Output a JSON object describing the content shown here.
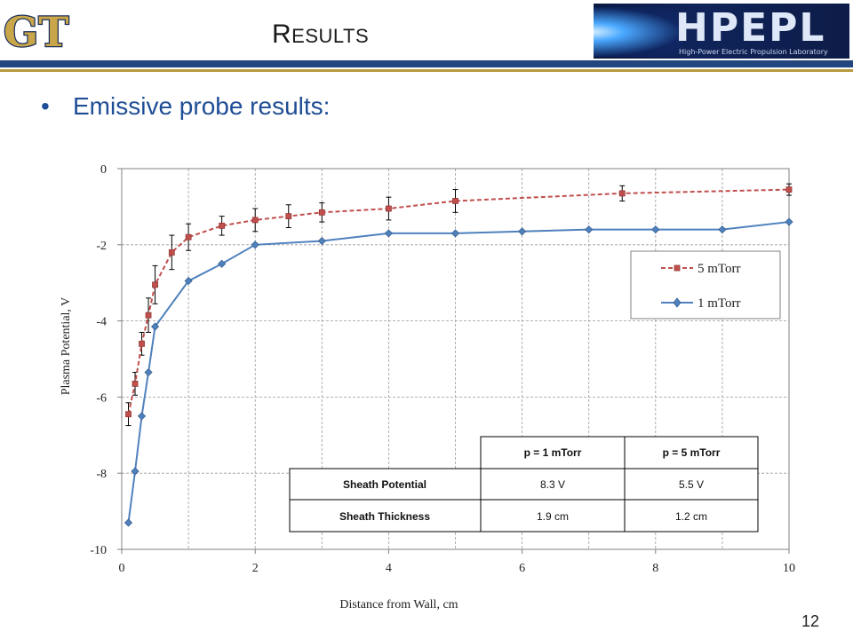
{
  "header": {
    "title_initial": "R",
    "title_rest": "esults",
    "left_logo": "GT",
    "right_logo": {
      "name": "HPEPL",
      "subtitle": "High-Power Electric Propulsion Laboratory"
    }
  },
  "bullet": "Emissive probe results:",
  "page_number": "12",
  "colors": {
    "series_5mTorr": "#c0504d",
    "series_1mTorr": "#4f81bd",
    "header_rule": "#23467f",
    "accent_rule": "#b89a3f",
    "bullet_text": "#1f4e96"
  },
  "chart_data": {
    "type": "line",
    "xlabel": "Distance from Wall, cm",
    "ylabel": "Plasma Potential, V",
    "xlim": [
      0,
      10
    ],
    "ylim": [
      -10,
      0
    ],
    "xticks": [
      0,
      2,
      4,
      6,
      8,
      10
    ],
    "yticks": [
      0,
      -2,
      -4,
      -6,
      -8,
      -10
    ],
    "grid": true,
    "legend_position": "right",
    "series": [
      {
        "name": "5 mTorr",
        "style": "dashed",
        "marker": "square",
        "color": "#c0504d",
        "x": [
          0.1,
          0.2,
          0.3,
          0.4,
          0.5,
          0.75,
          1.0,
          1.5,
          2.0,
          2.5,
          3.0,
          4.0,
          5.0,
          7.5,
          10.0
        ],
        "y": [
          -6.45,
          -5.65,
          -4.6,
          -3.85,
          -3.05,
          -2.2,
          -1.8,
          -1.5,
          -1.35,
          -1.25,
          -1.15,
          -1.05,
          -0.85,
          -0.65,
          -0.55
        ],
        "error": [
          0.3,
          0.3,
          0.3,
          0.45,
          0.5,
          0.45,
          0.35,
          0.25,
          0.3,
          0.3,
          0.25,
          0.3,
          0.3,
          0.2,
          0.15
        ]
      },
      {
        "name": "1 mTorr",
        "style": "solid",
        "marker": "diamond",
        "color": "#4f81bd",
        "x": [
          0.1,
          0.2,
          0.3,
          0.4,
          0.5,
          1.0,
          1.5,
          2.0,
          3.0,
          4.0,
          5.0,
          6.0,
          7.0,
          8.0,
          9.0,
          10.0
        ],
        "y": [
          -9.3,
          -7.95,
          -6.5,
          -5.35,
          -4.15,
          -2.95,
          -2.5,
          -2.0,
          -1.9,
          -1.7,
          -1.7,
          -1.65,
          -1.6,
          -1.6,
          -1.6,
          -1.4
        ]
      }
    ],
    "table": {
      "columns": [
        "",
        "p = 1 mTorr",
        "p = 5 mTorr"
      ],
      "rows": [
        [
          "Sheath Potential",
          "8.3 V",
          "5.5 V"
        ],
        [
          "Sheath Thickness",
          "1.9 cm",
          "1.2 cm"
        ]
      ]
    }
  }
}
